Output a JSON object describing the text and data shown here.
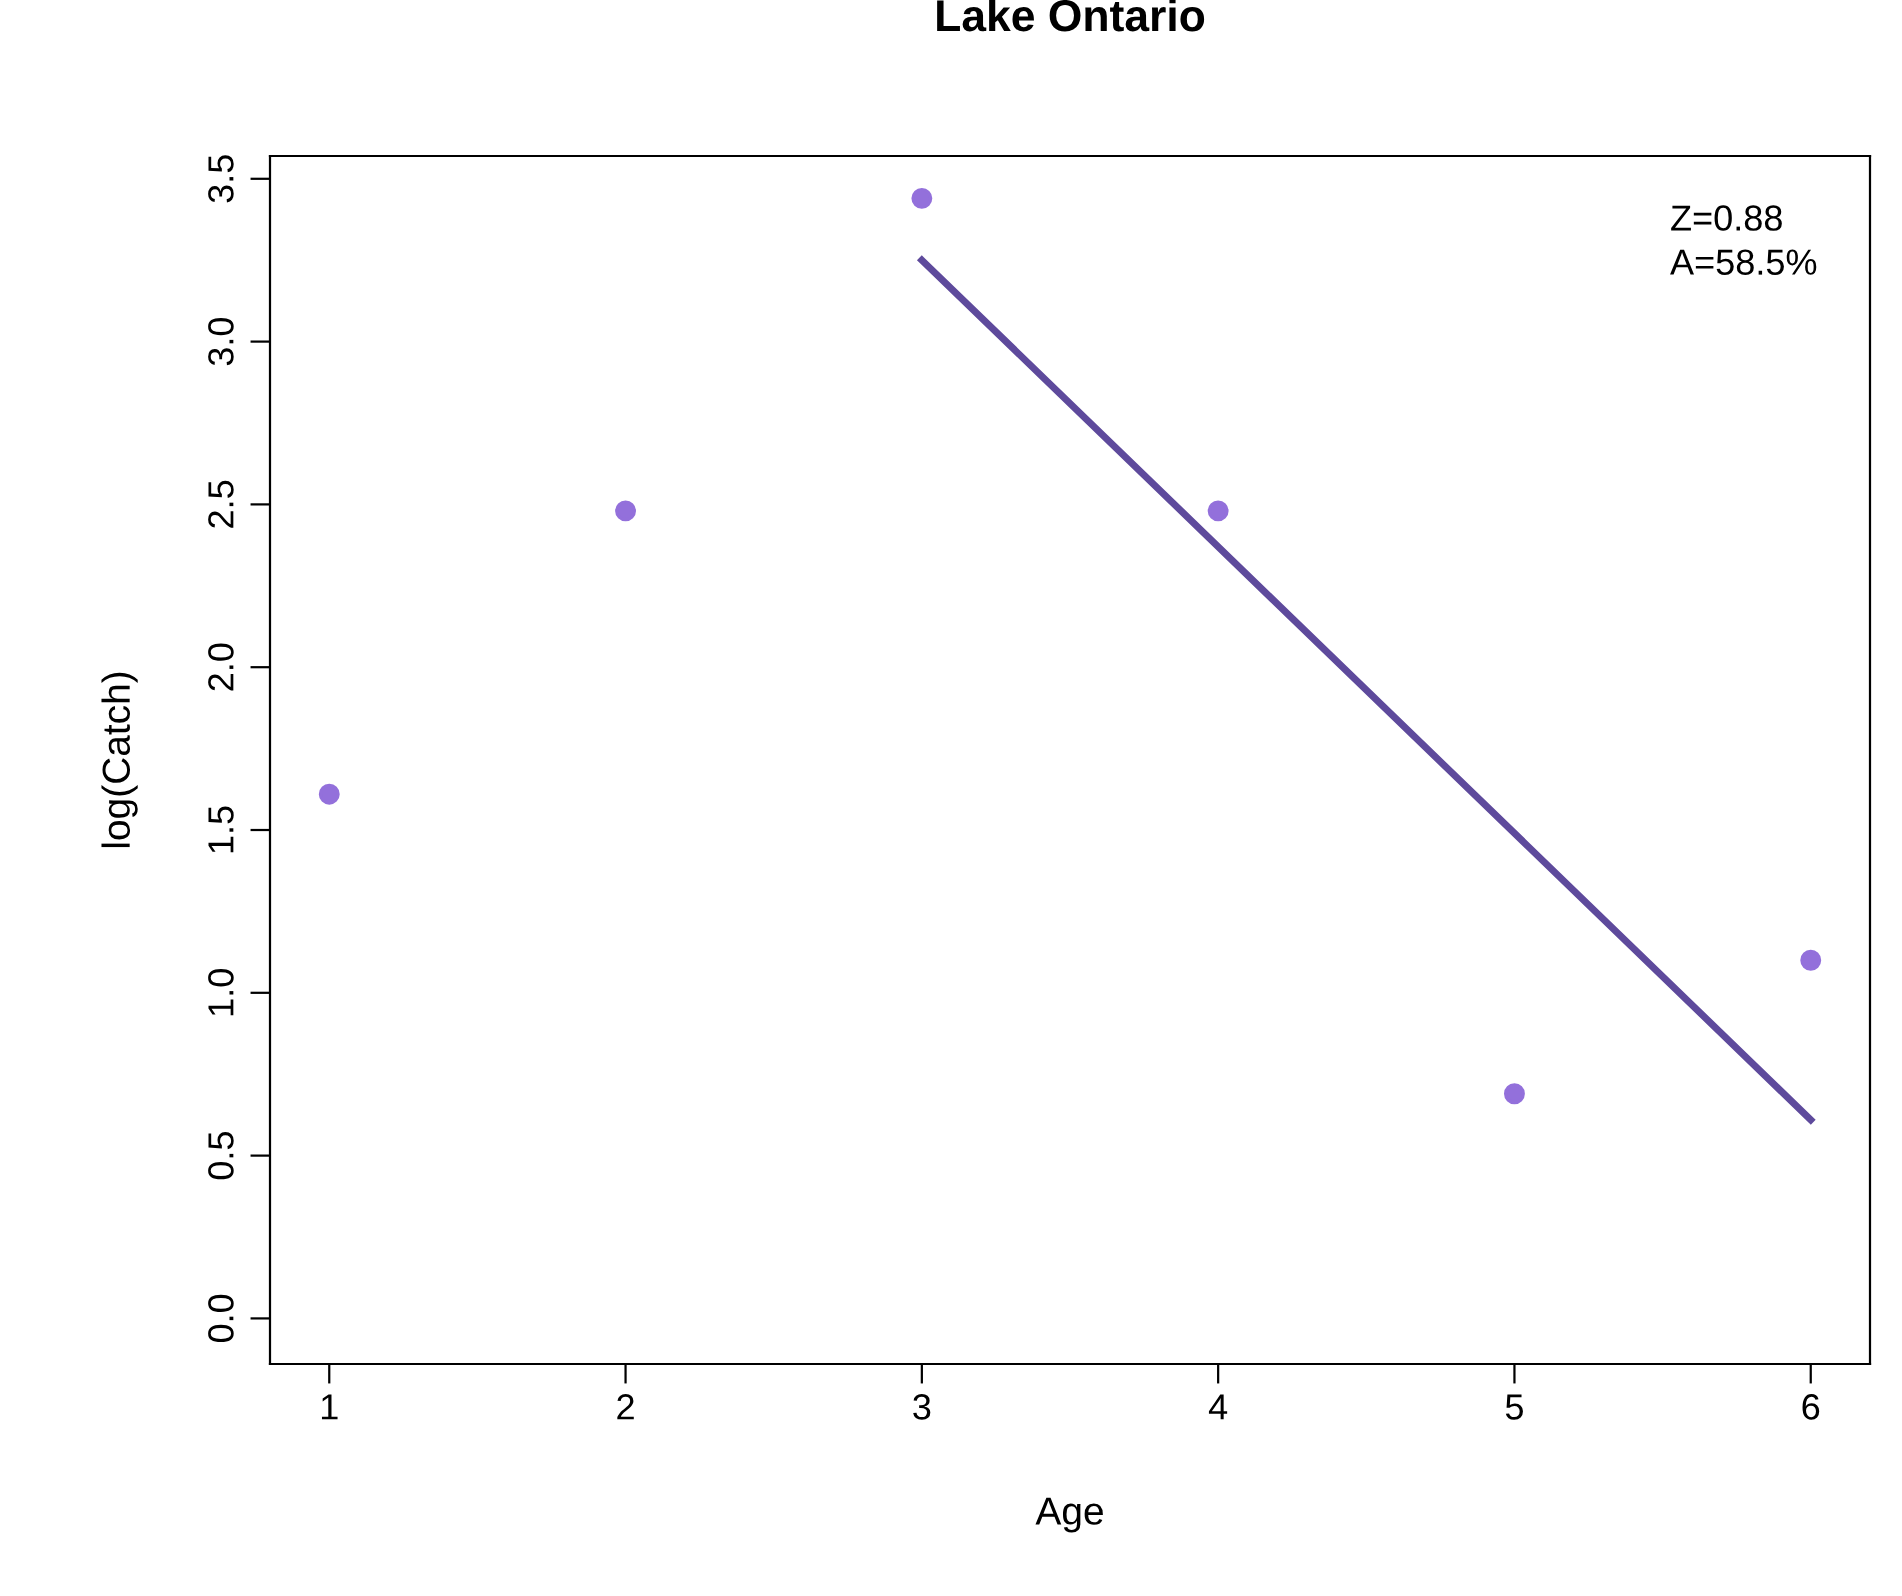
{
  "chart_data": {
    "type": "scatter",
    "title": "Lake Ontario",
    "xlabel": "Age",
    "ylabel": "log(Catch)",
    "series": [
      {
        "color": "#9370db",
        "x": [
          1,
          2
        ],
        "values": [
          1.61,
          2.48
        ],
        "marker": "circle"
      },
      {
        "color": "#9370db",
        "x": [
          3,
          4,
          5,
          6
        ],
        "values": [
          3.44,
          2.48,
          0.69,
          1.1
        ],
        "marker": "circle"
      },
      {
        "type": "line",
        "color": "#5e4a9c",
        "x": [
          3,
          6
        ],
        "values": [
          3.25,
          0.61
        ],
        "marker": "none",
        "line_style": "solid"
      }
    ],
    "xlim": [
      0.8,
      6.2
    ],
    "ylim": [
      -0.14,
      3.57
    ],
    "xticks": [
      1,
      2,
      3,
      4,
      5,
      6
    ],
    "yticks": [
      {
        "value": 0,
        "label": "0.0"
      },
      0.5,
      {
        "value": 1,
        "label": "1.0"
      },
      1.5,
      {
        "value": 2,
        "label": "2.0"
      },
      2.5,
      {
        "value": 3,
        "label": "3.0"
      },
      3.5
    ],
    "grid": false,
    "legend": false,
    "annotations": [
      "Z=0.88\nA=58.5%"
    ]
  }
}
